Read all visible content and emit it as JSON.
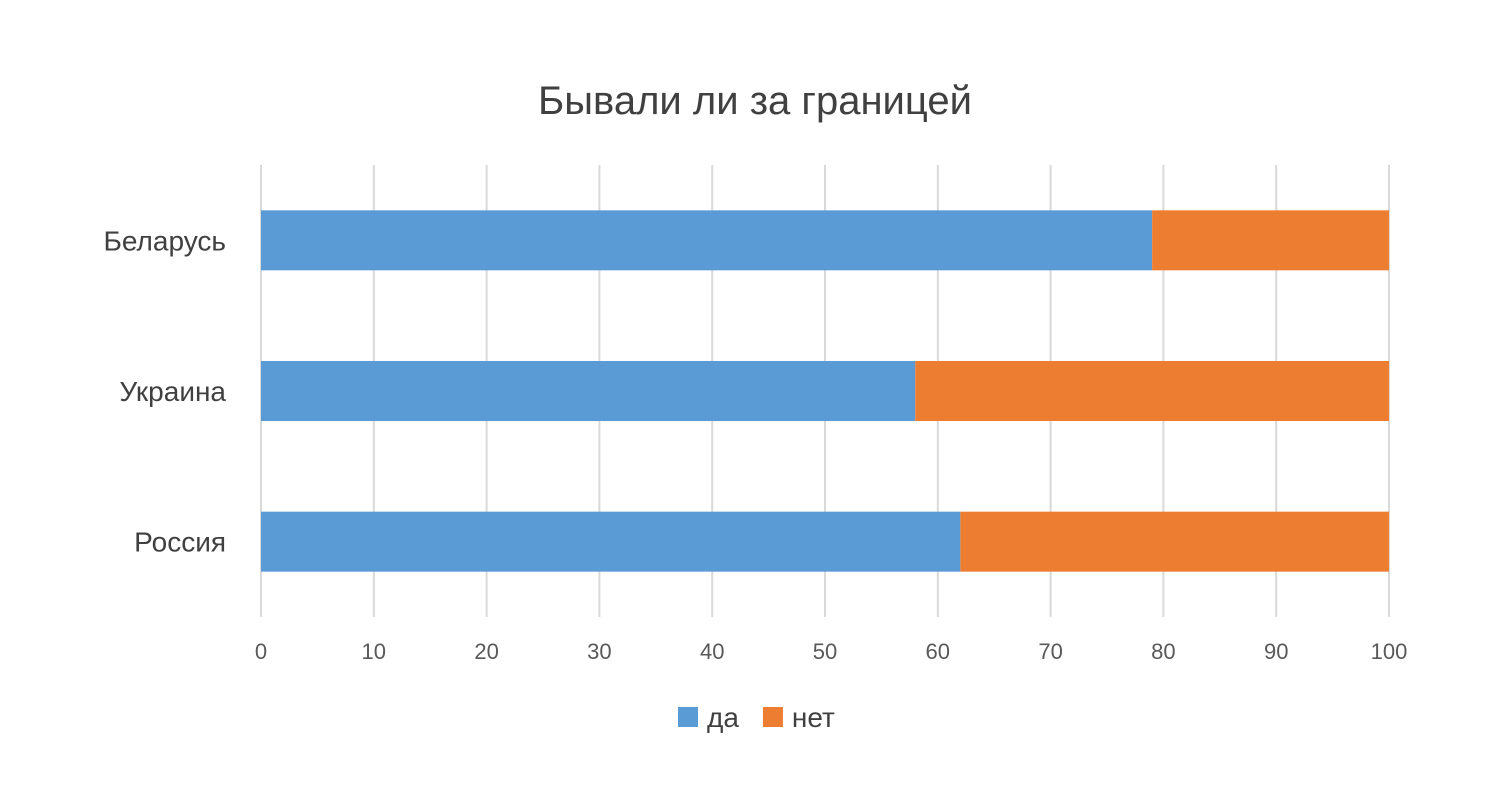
{
  "chart_data": {
    "type": "bar",
    "orientation": "horizontal",
    "stacked": true,
    "title": "Бывали ли за границей",
    "xlabel": "",
    "ylabel": "",
    "categories": [
      "Россия",
      "Украина",
      "Беларусь"
    ],
    "series": [
      {
        "name": "да",
        "color": "#5B9BD5",
        "values": [
          62,
          58,
          79
        ]
      },
      {
        "name": "нет",
        "color": "#ED7D31",
        "values": [
          38,
          42,
          21
        ]
      }
    ],
    "xlim": [
      0,
      100
    ],
    "xticks": [
      0,
      10,
      20,
      30,
      40,
      50,
      60,
      70,
      80,
      90,
      100
    ],
    "grid": true,
    "legend": "bottom"
  }
}
